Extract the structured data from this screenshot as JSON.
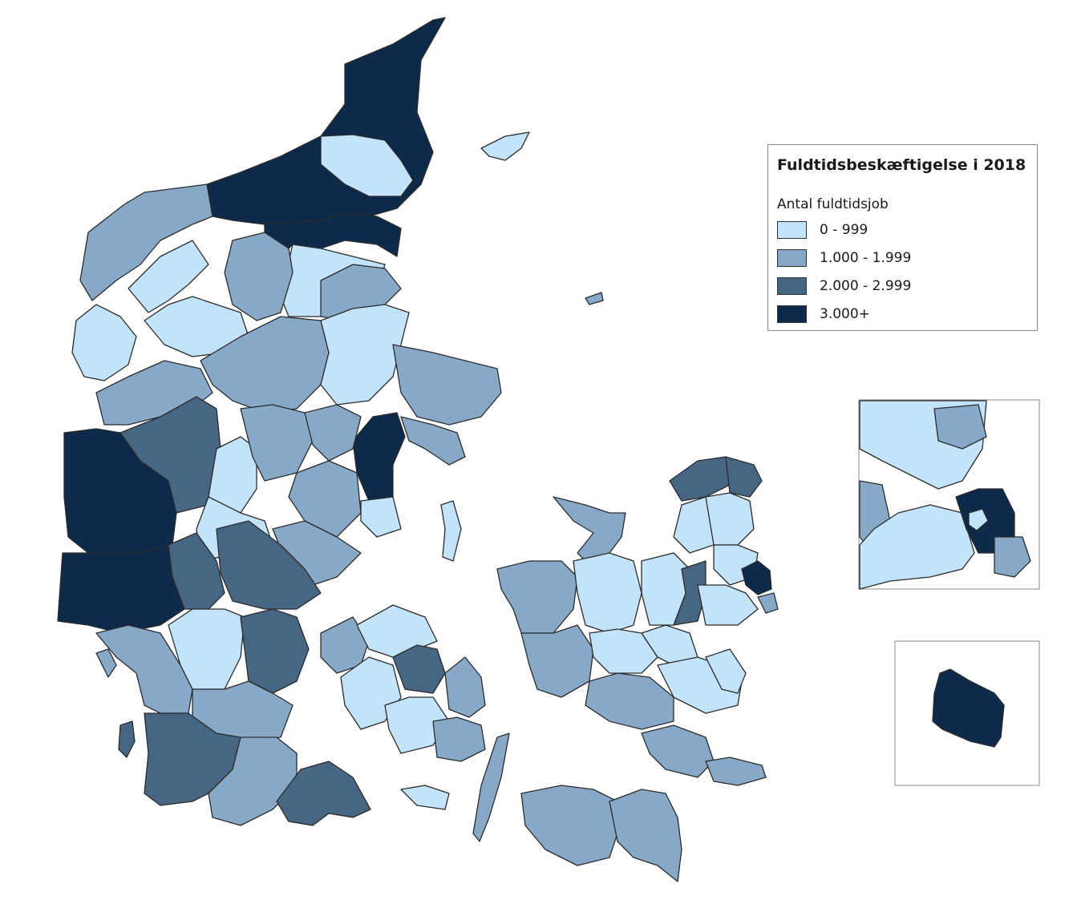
{
  "legend": {
    "title": "Fuldtidsbeskæftigelse i 2018",
    "subtitle": "Antal fuldtidsjob",
    "classes": [
      {
        "label": "0 - 999",
        "color": "#c2e3fa"
      },
      {
        "label": "1.000 - 1.999",
        "color": "#88a8c8"
      },
      {
        "label": "2.000 - 2.999",
        "color": "#466684"
      },
      {
        "label": "3.000+",
        "color": "#0e2a4b"
      }
    ]
  },
  "map": {
    "stroke_color": "#2b2b2b",
    "insets": [
      "copenhagen-area",
      "bornholm"
    ]
  }
}
